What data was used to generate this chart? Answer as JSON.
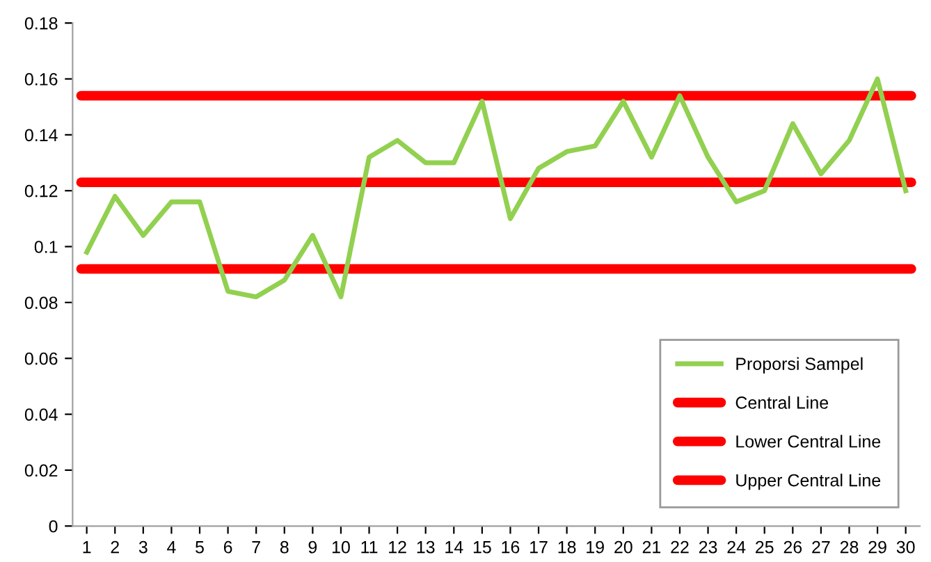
{
  "chart_data": {
    "type": "line",
    "categories": [
      "1",
      "2",
      "3",
      "4",
      "5",
      "6",
      "7",
      "8",
      "9",
      "10",
      "11",
      "12",
      "13",
      "14",
      "15",
      "16",
      "17",
      "18",
      "19",
      "20",
      "21",
      "22",
      "23",
      "24",
      "25",
      "26",
      "27",
      "28",
      "29",
      "30"
    ],
    "series": [
      {
        "name": "Proporsi Sampel",
        "color": "#92d050",
        "values": [
          0.098,
          0.118,
          0.104,
          0.116,
          0.116,
          0.084,
          0.082,
          0.088,
          0.104,
          0.082,
          0.132,
          0.138,
          0.13,
          0.13,
          0.152,
          0.11,
          0.128,
          0.134,
          0.136,
          0.152,
          0.132,
          0.154,
          0.132,
          0.116,
          0.12,
          0.144,
          0.126,
          0.138,
          0.16,
          0.12
        ]
      }
    ],
    "ref_lines": [
      {
        "axis": "y",
        "value": 0.123,
        "label": "Central Line",
        "color": "#ff0000"
      },
      {
        "axis": "y",
        "value": 0.092,
        "label": "Lower Central Line",
        "color": "#ff0000"
      },
      {
        "axis": "y",
        "value": 0.154,
        "label": "Upper Central Line",
        "color": "#ff0000"
      }
    ],
    "ylim": [
      0,
      0.18
    ],
    "yticks": [
      0,
      0.02,
      0.04,
      0.06,
      0.08,
      0.1,
      0.12,
      0.14,
      0.16,
      0.18
    ],
    "grid": false,
    "legend": "bottom right",
    "marker": "none",
    "line_style": "solid"
  }
}
